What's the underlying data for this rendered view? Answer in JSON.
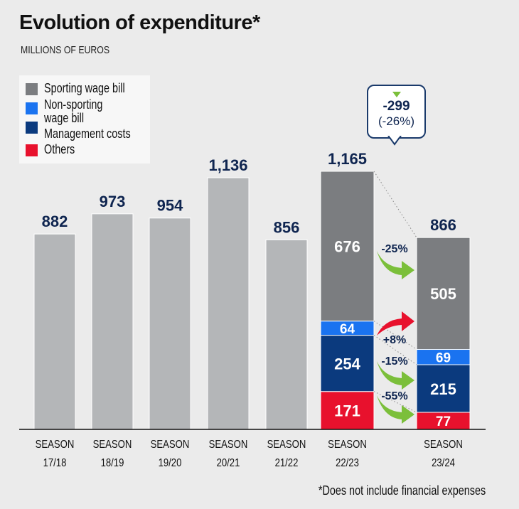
{
  "chart_data": {
    "type": "bar",
    "title": "Evolution of expenditure*",
    "subtitle": "MILLIONS OF EUROS",
    "footnote": "*Does not include financial expenses",
    "ylim": [
      0,
      1165
    ],
    "grid": false,
    "legend_position": "top-left",
    "categories": [
      {
        "line1": "SEASON",
        "line2": "17/18"
      },
      {
        "line1": "SEASON",
        "line2": "18/19"
      },
      {
        "line1": "SEASON",
        "line2": "19/20"
      },
      {
        "line1": "SEASON",
        "line2": "20/21"
      },
      {
        "line1": "SEASON",
        "line2": "21/22"
      },
      {
        "line1": "SEASON",
        "line2": "22/23"
      },
      {
        "line1": "SEASON",
        "line2": "23/24"
      }
    ],
    "totals": [
      882,
      973,
      954,
      1136,
      856,
      1165,
      866
    ],
    "total_labels": [
      "882",
      "973",
      "954",
      "1,136",
      "856",
      "1,165",
      "866"
    ],
    "legend": [
      {
        "name": "Sporting wage bill",
        "color": "#7b7d80"
      },
      {
        "name": "Non-sporting wage bill",
        "line1": "Non-sporting",
        "line2": "wage bill",
        "color": "#1a73f0"
      },
      {
        "name": "Management costs",
        "color": "#0b3a7e"
      },
      {
        "name": "Others",
        "color": "#e8112d"
      }
    ],
    "breakdown_series": [
      {
        "name": "Others",
        "color": "#e8112d",
        "values": {
          "22/23": 171,
          "23/24": 77
        }
      },
      {
        "name": "Management costs",
        "color": "#0b3a7e",
        "values": {
          "22/23": 254,
          "23/24": 215
        }
      },
      {
        "name": "Non-sporting wage bill",
        "color": "#1a73f0",
        "values": {
          "22/23": 64,
          "23/24": 69
        }
      },
      {
        "name": "Sporting wage bill",
        "color": "#7b7d80",
        "values": {
          "22/23": 676,
          "23/24": 505
        }
      }
    ],
    "changes": [
      {
        "series": "Sporting wage bill",
        "label": "-25%",
        "direction": "down",
        "color": "#7bbf3a"
      },
      {
        "series": "Non-sporting wage bill",
        "label": "+8%",
        "direction": "up",
        "color": "#e8112d"
      },
      {
        "series": "Management costs",
        "label": "-15%",
        "direction": "down",
        "color": "#7bbf3a"
      },
      {
        "series": "Others",
        "label": "-55%",
        "direction": "down",
        "color": "#7bbf3a"
      }
    ],
    "total_change": {
      "value": "-299",
      "percent": "(-26%)"
    },
    "simple_bar_color": "#b4b6b8",
    "label_color": "#0f2550"
  }
}
